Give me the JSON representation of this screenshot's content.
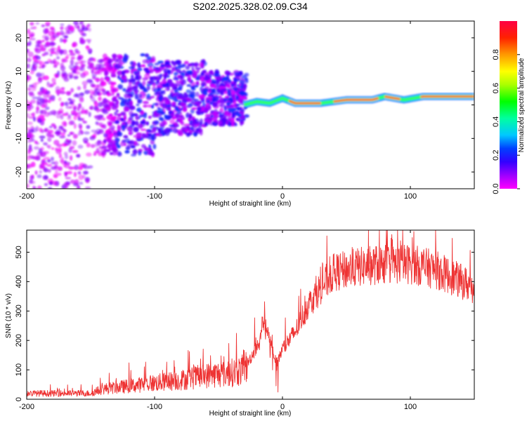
{
  "title": "S202.2025.328.02.09.C34",
  "chart_data": [
    {
      "type": "heatmap",
      "name": "spectrogram",
      "xlabel": "Height of straight line (km)",
      "ylabel": "Frequency (Hz)",
      "xlim": [
        -200,
        150
      ],
      "ylim": [
        -25,
        25
      ],
      "xticks": [
        -200,
        -100,
        0,
        100
      ],
      "yticks": [
        -20,
        -10,
        0,
        10,
        20
      ],
      "colorbar": {
        "label": "Normalized spectral amplitude",
        "range": [
          0,
          1
        ],
        "ticks": [
          "0.0",
          "0.2",
          "0.4",
          "0.6",
          "0.8"
        ],
        "tick_values": [
          0.0,
          0.2,
          0.4,
          0.6,
          0.8
        ],
        "colors": [
          "#ff00ff",
          "#8800ff",
          "#0000ff",
          "#00c8ff",
          "#00ff80",
          "#66ff00",
          "#ffff00",
          "#ff8800",
          "#ff0000"
        ]
      },
      "ridge": [
        {
          "x": -30,
          "f": 0.0
        },
        {
          "x": -20,
          "f": 1.0
        },
        {
          "x": -10,
          "f": 0.5
        },
        {
          "x": 0,
          "f": 2.0
        },
        {
          "x": 10,
          "f": 0.5
        },
        {
          "x": 30,
          "f": 0.5
        },
        {
          "x": 50,
          "f": 1.5
        },
        {
          "x": 70,
          "f": 1.5
        },
        {
          "x": 80,
          "f": 2.5
        },
        {
          "x": 95,
          "f": 1.5
        },
        {
          "x": 110,
          "f": 2.5
        },
        {
          "x": 150,
          "f": 2.5
        }
      ]
    },
    {
      "type": "line",
      "name": "snr",
      "color": "#ee3333",
      "xlabel": "Height of straight line (km)",
      "ylabel": "SNR (10 * v/v)",
      "xlim": [
        -200,
        150
      ],
      "ylim": [
        0,
        575
      ],
      "xticks": [
        -200,
        -100,
        0,
        100
      ],
      "yticks": [
        0,
        100,
        200,
        300,
        400,
        500
      ],
      "envelope": {
        "x": [
          -200,
          -150,
          -140,
          -120,
          -100,
          -80,
          -60,
          -40,
          -30,
          -20,
          -15,
          -10,
          -5,
          0,
          10,
          20,
          30,
          40,
          60,
          80,
          100,
          120,
          130,
          140,
          150
        ],
        "y": [
          20,
          20,
          35,
          45,
          55,
          65,
          80,
          90,
          100,
          180,
          260,
          200,
          120,
          170,
          230,
          320,
          380,
          430,
          450,
          460,
          460,
          440,
          420,
          400,
          380
        ]
      }
    }
  ]
}
